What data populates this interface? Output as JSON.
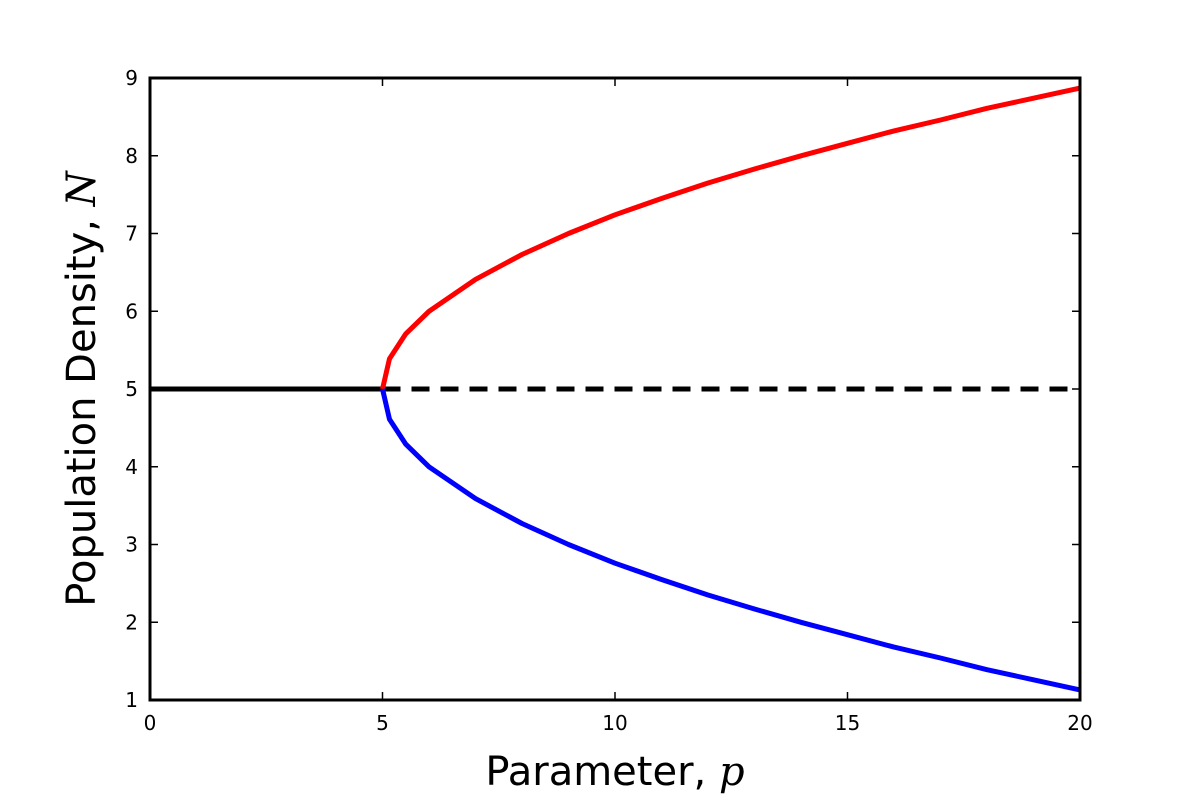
{
  "chart_data": {
    "type": "line",
    "xlabel_text": "Parameter,",
    "xlabel_var": "p",
    "ylabel_text": "Population Density,",
    "ylabel_var": "N",
    "xlim": [
      0,
      20
    ],
    "ylim": [
      1,
      9
    ],
    "x_ticks": [
      0,
      5,
      10,
      15,
      20
    ],
    "y_ticks": [
      1,
      2,
      3,
      4,
      5,
      6,
      7,
      8,
      9
    ],
    "grid": false,
    "legend": "none",
    "series": [
      {
        "id": "stable-equilibrium",
        "color": "#000000",
        "style": "solid",
        "x": [
          0,
          5
        ],
        "y": [
          5,
          5
        ]
      },
      {
        "id": "unstable-equilibrium",
        "color": "#000000",
        "style": "dashed",
        "x": [
          5,
          20
        ],
        "y": [
          5,
          5
        ]
      },
      {
        "id": "upper-branch",
        "color": "#ff0000",
        "style": "solid",
        "x": [
          5,
          5.15,
          5.5,
          6,
          7,
          8,
          9,
          10,
          11,
          12,
          13,
          14,
          15,
          16,
          17,
          18,
          19,
          20
        ],
        "y": [
          5,
          5.39,
          5.71,
          6.0,
          6.41,
          6.73,
          7.0,
          7.24,
          7.45,
          7.65,
          7.83,
          8.0,
          8.16,
          8.32,
          8.46,
          8.61,
          8.74,
          8.87
        ]
      },
      {
        "id": "lower-branch",
        "color": "#0000ff",
        "style": "solid",
        "x": [
          5,
          5.15,
          5.5,
          6,
          7,
          8,
          9,
          10,
          11,
          12,
          13,
          14,
          15,
          16,
          17,
          18,
          19,
          20
        ],
        "y": [
          5,
          4.61,
          4.29,
          4.0,
          3.59,
          3.27,
          3.0,
          2.76,
          2.55,
          2.35,
          2.17,
          2.0,
          1.84,
          1.68,
          1.54,
          1.39,
          1.26,
          1.13
        ]
      }
    ]
  }
}
